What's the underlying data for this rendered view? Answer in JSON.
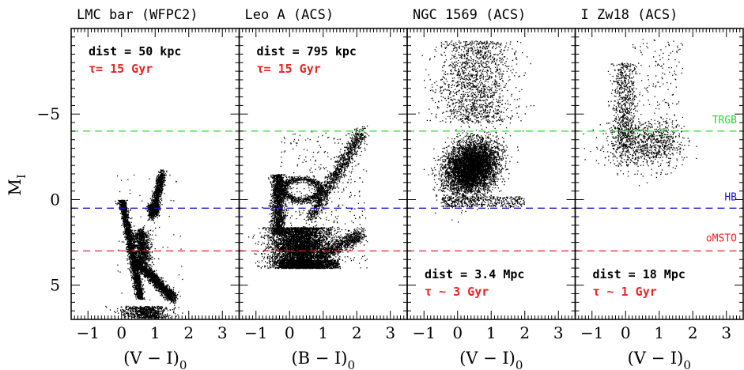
{
  "chart_data": {
    "type": "scatter",
    "ylabel": "M",
    "ylabel_sub": "I",
    "ylim": [
      7,
      -10
    ],
    "yticks": [
      5,
      0,
      -5
    ],
    "ytick_labels": [
      "5",
      "0",
      "−5"
    ],
    "xlim": [
      -1.5,
      3.5
    ],
    "xticks": [
      -1,
      0,
      1,
      2,
      3
    ],
    "xtick_labels": [
      "−1",
      "0",
      "1",
      "2",
      "3"
    ],
    "reference_lines": [
      {
        "name": "TRGB",
        "y": -4.0,
        "color": "#22dd22"
      },
      {
        "name": "HB",
        "y": 0.5,
        "color": "#1a1acc"
      },
      {
        "name": "oMSTO",
        "y": 3.0,
        "color": "#ee2222"
      }
    ],
    "panels": [
      {
        "title": "LMC bar (WFPC2)",
        "xlabel": "(V − I)",
        "xlabel_sub": "0",
        "dist_label": "dist = 50 kpc",
        "age_label": "τ= 15 Gyr",
        "annotation_position": "top-left"
      },
      {
        "title": "Leo A (ACS)",
        "xlabel": "(B − I)",
        "xlabel_sub": "0",
        "dist_label": "dist = 795 kpc",
        "age_label": "τ= 15 Gyr",
        "annotation_position": "top-left"
      },
      {
        "title": "NGC 1569 (ACS)",
        "xlabel": "(V − I)",
        "xlabel_sub": "0",
        "dist_label": "dist = 3.4 Mpc",
        "age_label": "τ ~ 3 Gyr",
        "annotation_position": "bottom-left"
      },
      {
        "title": "I Zw18 (ACS)",
        "xlabel": "(V − I)",
        "xlabel_sub": "0",
        "dist_label": "dist = 18 Mpc",
        "age_label": "τ ~ 1 Gyr",
        "annotation_position": "bottom-left"
      }
    ]
  },
  "colors": {
    "age_text": "#ee2222",
    "points": "#000000"
  }
}
